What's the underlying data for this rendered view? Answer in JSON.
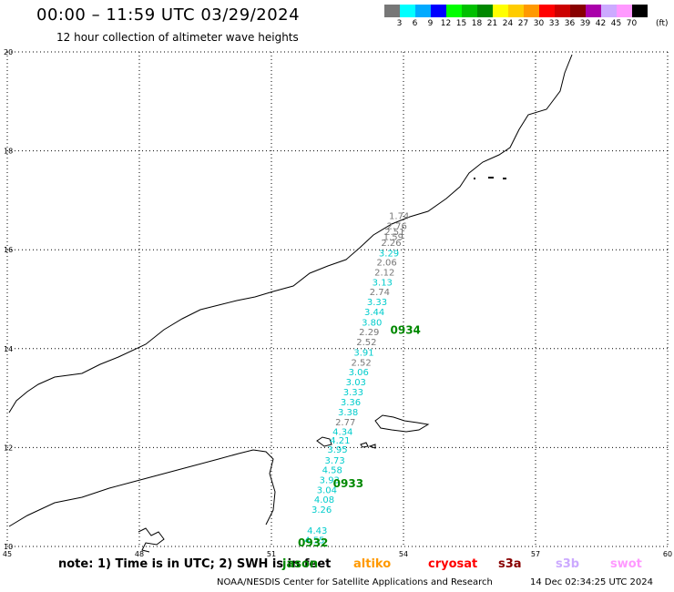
{
  "header": {
    "title": "00:00 – 11:59 UTC 03/29/2024",
    "subtitle": "12 hour collection of altimeter wave heights"
  },
  "colorbar": {
    "colors": [
      "#777777",
      "#00ffff",
      "#00aaff",
      "#0000ff",
      "#00ff00",
      "#00c000",
      "#008800",
      "#ffff00",
      "#ffcc00",
      "#ff9900",
      "#ff0000",
      "#cc0000",
      "#880000",
      "#aa00aa",
      "#ccaaff",
      "#ff99ff",
      "#000000"
    ],
    "ticks": [
      "3",
      "6",
      "9",
      "12",
      "15",
      "18",
      "21",
      "24",
      "27",
      "30",
      "33",
      "36",
      "39",
      "42",
      "45",
      "70"
    ],
    "units": "(ft)"
  },
  "map": {
    "lon_range": [
      45,
      60
    ],
    "lat_range": [
      10,
      20
    ],
    "x_ticks": [
      "45",
      "48",
      "51",
      "54",
      "57",
      "60"
    ],
    "y_ticks": [
      "20",
      "18",
      "16",
      "14",
      "12",
      "10"
    ],
    "grid": "dotted"
  },
  "chart_data": {
    "type": "scatter",
    "passes": [
      {
        "label": "0934",
        "lon": 53.7,
        "lat": 14.3
      },
      {
        "label": "0933",
        "lon": 52.4,
        "lat": 11.2
      },
      {
        "label": "0932",
        "lon": 51.6,
        "lat": 10.0
      }
    ],
    "points": [
      {
        "lon": 53.9,
        "lat": 16.62,
        "v": "1.74",
        "c": "#777777"
      },
      {
        "lon": 53.85,
        "lat": 16.42,
        "v": "2.76",
        "c": "#777777"
      },
      {
        "lon": 53.8,
        "lat": 16.3,
        "v": "2.51",
        "c": "#777777"
      },
      {
        "lon": 53.77,
        "lat": 16.2,
        "v": "1.59",
        "c": "#777777"
      },
      {
        "lon": 53.72,
        "lat": 16.08,
        "v": "2.26",
        "c": "#777777"
      },
      {
        "lon": 53.67,
        "lat": 15.87,
        "v": "3.29",
        "c": "#00cccc"
      },
      {
        "lon": 53.62,
        "lat": 15.68,
        "v": "2.06",
        "c": "#777777"
      },
      {
        "lon": 53.57,
        "lat": 15.48,
        "v": "2.12",
        "c": "#777777"
      },
      {
        "lon": 53.52,
        "lat": 15.28,
        "v": "3.13",
        "c": "#00cccc"
      },
      {
        "lon": 53.46,
        "lat": 15.08,
        "v": "2.74",
        "c": "#777777"
      },
      {
        "lon": 53.4,
        "lat": 14.88,
        "v": "3.33",
        "c": "#00cccc"
      },
      {
        "lon": 53.34,
        "lat": 14.68,
        "v": "3.44",
        "c": "#00cccc"
      },
      {
        "lon": 53.28,
        "lat": 14.47,
        "v": "3.80",
        "c": "#00cccc"
      },
      {
        "lon": 53.22,
        "lat": 14.27,
        "v": "2.29",
        "c": "#777777"
      },
      {
        "lon": 53.16,
        "lat": 14.07,
        "v": "2.52",
        "c": "#777777"
      },
      {
        "lon": 53.1,
        "lat": 13.86,
        "v": "3.91",
        "c": "#00cccc"
      },
      {
        "lon": 53.04,
        "lat": 13.66,
        "v": "2.52",
        "c": "#777777"
      },
      {
        "lon": 52.98,
        "lat": 13.46,
        "v": "3.06",
        "c": "#00cccc"
      },
      {
        "lon": 52.92,
        "lat": 13.26,
        "v": "3.03",
        "c": "#00cccc"
      },
      {
        "lon": 52.86,
        "lat": 13.06,
        "v": "3.33",
        "c": "#00cccc"
      },
      {
        "lon": 52.8,
        "lat": 12.85,
        "v": "3.36",
        "c": "#00cccc"
      },
      {
        "lon": 52.74,
        "lat": 12.65,
        "v": "3.38",
        "c": "#00cccc"
      },
      {
        "lon": 52.68,
        "lat": 12.45,
        "v": "2.77",
        "c": "#777777"
      },
      {
        "lon": 52.62,
        "lat": 12.26,
        "v": "4.34",
        "c": "#00cccc"
      },
      {
        "lon": 52.56,
        "lat": 12.08,
        "v": "4.21",
        "c": "#00cccc"
      },
      {
        "lon": 52.5,
        "lat": 11.9,
        "v": "3.95",
        "c": "#00cccc"
      },
      {
        "lon": 52.44,
        "lat": 11.68,
        "v": "3.73",
        "c": "#00cccc"
      },
      {
        "lon": 52.38,
        "lat": 11.48,
        "v": "4.58",
        "c": "#00cccc"
      },
      {
        "lon": 52.32,
        "lat": 11.28,
        "v": "3.93",
        "c": "#00cccc"
      },
      {
        "lon": 52.26,
        "lat": 11.08,
        "v": "3.04",
        "c": "#00cccc"
      },
      {
        "lon": 52.2,
        "lat": 10.88,
        "v": "4.08",
        "c": "#00cccc"
      },
      {
        "lon": 52.14,
        "lat": 10.68,
        "v": "3.26",
        "c": "#00cccc"
      },
      {
        "lon": 52.04,
        "lat": 10.26,
        "v": "4.43",
        "c": "#00cccc"
      },
      {
        "lon": 51.98,
        "lat": 10.06,
        "v": "4.55",
        "c": "#00cccc"
      }
    ]
  },
  "note": {
    "text": "note:  1) Time is in UTC; 2) SWH is in feet",
    "legend": [
      {
        "name": "jason",
        "color": "#008800"
      },
      {
        "name": "altiko",
        "color": "#ff9900"
      },
      {
        "name": "cryosat",
        "color": "#ff0000"
      },
      {
        "name": "s3a",
        "color": "#880000"
      },
      {
        "name": "s3b",
        "color": "#ccaaff"
      },
      {
        "name": "swot",
        "color": "#ff99ff"
      }
    ]
  },
  "footer": {
    "credit": "NOAA/NESDIS Center for Satellite Applications and Research",
    "timestamp": "14 Dec 02:34:25 UTC 2024"
  }
}
